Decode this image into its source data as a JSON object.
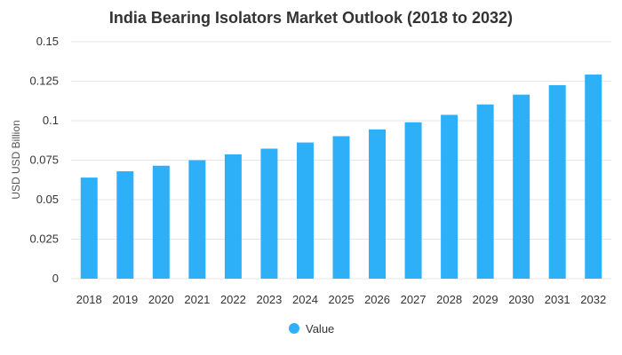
{
  "chart_data": {
    "type": "bar",
    "title": "India Bearing Isolators Market Outlook (2018 to 2032)",
    "xlabel": "",
    "ylabel": "USD USD Billion",
    "ylim": [
      0,
      0.15
    ],
    "yticks": [
      "0",
      "0.025",
      "0.05",
      "0.075",
      "0.1",
      "0.125",
      "0.15"
    ],
    "categories": [
      "2018",
      "2019",
      "2020",
      "2021",
      "2022",
      "2023",
      "2024",
      "2025",
      "2026",
      "2027",
      "2028",
      "2029",
      "2030",
      "2031",
      "2032"
    ],
    "series": [
      {
        "name": "Value",
        "color": "#2eb0f9",
        "values": [
          0.064,
          0.068,
          0.0715,
          0.075,
          0.0787,
          0.0823,
          0.0862,
          0.0902,
          0.0945,
          0.099,
          0.1037,
          0.1103,
          0.1165,
          0.1225,
          0.1292
        ]
      }
    ],
    "grid": true,
    "legend": "bottom-center"
  }
}
